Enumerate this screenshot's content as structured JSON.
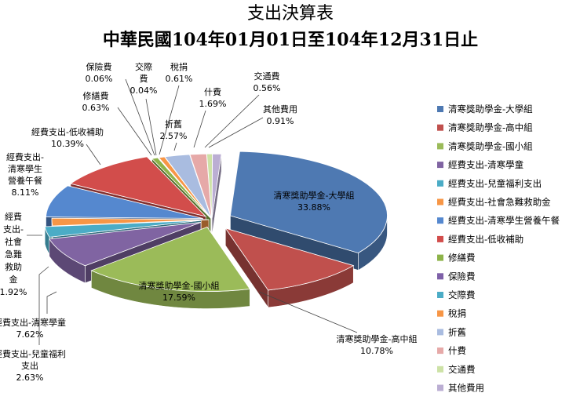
{
  "chart_data": {
    "type": "pie",
    "title": "支出決算表",
    "subtitle": "中華民國104年01月01日至104年12月31日止",
    "legend_position": "right",
    "slices": [
      {
        "name": "清寒獎助學金-大學組",
        "label_lines": [
          "清寒獎助學金-大學組"
        ],
        "percent_label": "33.88%",
        "value": 33.88,
        "color": "#4E79B2"
      },
      {
        "name": "清寒獎助學金-高中組",
        "label_lines": [
          "清寒獎助學金-高中組"
        ],
        "percent_label": "10.78%",
        "value": 10.78,
        "color": "#C0504D"
      },
      {
        "name": "清寒獎助學金-國小組",
        "label_lines": [
          "清寒獎助學金-國小組"
        ],
        "percent_label": "17.59%",
        "value": 17.59,
        "color": "#9BBB59"
      },
      {
        "name": "經費支出-清寒學童",
        "label_lines": [
          "經費支出-清寒學童"
        ],
        "percent_label": "7.62%",
        "value": 7.62,
        "color": "#8064A2"
      },
      {
        "name": "經費支出-兒童福利支出",
        "label_lines": [
          "經費支出-兒童福利",
          "支出"
        ],
        "percent_label": "2.63%",
        "value": 2.63,
        "color": "#4BACC6"
      },
      {
        "name": "經費支出-社會急難救助金",
        "label_lines": [
          "經費",
          "支出-",
          "社會",
          "急難",
          "救助",
          "金"
        ],
        "percent_label": "1.92%",
        "value": 1.92,
        "color": "#F79646"
      },
      {
        "name": "經費支出-清寒學生營養午餐",
        "label_lines": [
          "經費支出-",
          "清寒學生",
          "營養午餐"
        ],
        "percent_label": "8.11%",
        "value": 8.11,
        "color": "#5588CF"
      },
      {
        "name": "經費支出-低收補助",
        "label_lines": [
          "經費支出-低收補助"
        ],
        "percent_label": "10.39%",
        "value": 10.39,
        "color": "#D24D4B"
      },
      {
        "name": "修繕費",
        "label_lines": [
          "修繕費"
        ],
        "percent_label": "0.63%",
        "value": 0.63,
        "color": "#8DB349"
      },
      {
        "name": "保險費",
        "label_lines": [
          "保險費"
        ],
        "percent_label": "0.06%",
        "value": 0.06,
        "color": "#7E60A8"
      },
      {
        "name": "交際費",
        "label_lines": [
          "交際",
          "費"
        ],
        "percent_label": "0.04%",
        "value": 0.04,
        "color": "#4BACC6"
      },
      {
        "name": "稅捐",
        "label_lines": [
          "稅捐"
        ],
        "percent_label": "0.61%",
        "value": 0.61,
        "color": "#F79646"
      },
      {
        "name": "折舊",
        "label_lines": [
          "折舊"
        ],
        "percent_label": "2.57%",
        "value": 2.57,
        "color": "#A9BCE0"
      },
      {
        "name": "什費",
        "label_lines": [
          "什費"
        ],
        "percent_label": "1.69%",
        "value": 1.69,
        "color": "#E6A9A8"
      },
      {
        "name": "交通費",
        "label_lines": [
          "交通費"
        ],
        "percent_label": "0.56%",
        "value": 0.56,
        "color": "#CDE2A6"
      },
      {
        "name": "其他費用",
        "label_lines": [
          "其他費用"
        ],
        "percent_label": "0.91%",
        "value": 0.91,
        "color": "#BBAED3"
      }
    ]
  }
}
